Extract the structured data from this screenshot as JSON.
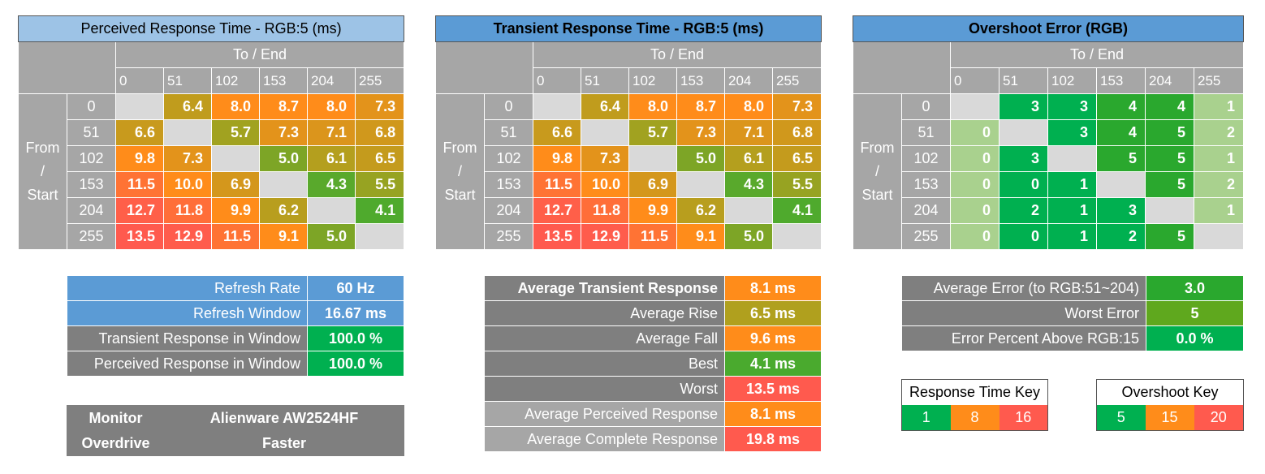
{
  "colors": {
    "green": "#00b050",
    "green_light": "#a9d18e",
    "olive": "#b0a01e",
    "orange": "#ff8c1a",
    "red": "#ff5a4e",
    "blue": "#5b9bd5"
  },
  "chart_data": [
    {
      "type": "table",
      "title": "Perceived Response Time - RGB:5 (ms)",
      "col_header": "To / End",
      "row_header": [
        "From",
        "/",
        "Start"
      ],
      "x": [
        "0",
        "51",
        "102",
        "153",
        "204",
        "255"
      ],
      "y": [
        "0",
        "51",
        "102",
        "153",
        "204",
        "255"
      ],
      "values": [
        [
          null,
          "6.4",
          "8.0",
          "8.7",
          "8.0",
          "7.3"
        ],
        [
          "6.6",
          null,
          "5.7",
          "7.3",
          "7.1",
          "6.8"
        ],
        [
          "9.8",
          "7.3",
          null,
          "5.0",
          "6.1",
          "6.5"
        ],
        [
          "11.5",
          "10.0",
          "6.9",
          null,
          "4.3",
          "5.5"
        ],
        [
          "12.7",
          "11.8",
          "9.9",
          "6.2",
          null,
          "4.1"
        ],
        [
          "13.5",
          "12.9",
          "11.5",
          "9.1",
          "5.0",
          null
        ]
      ]
    },
    {
      "type": "table",
      "title": "Transient Response Time - RGB:5 (ms)",
      "col_header": "To / End",
      "row_header": [
        "From",
        "/",
        "Start"
      ],
      "x": [
        "0",
        "51",
        "102",
        "153",
        "204",
        "255"
      ],
      "y": [
        "0",
        "51",
        "102",
        "153",
        "204",
        "255"
      ],
      "values": [
        [
          null,
          "6.4",
          "8.0",
          "8.7",
          "8.0",
          "7.3"
        ],
        [
          "6.6",
          null,
          "5.7",
          "7.3",
          "7.1",
          "6.8"
        ],
        [
          "9.8",
          "7.3",
          null,
          "5.0",
          "6.1",
          "6.5"
        ],
        [
          "11.5",
          "10.0",
          "6.9",
          null,
          "4.3",
          "5.5"
        ],
        [
          "12.7",
          "11.8",
          "9.9",
          "6.2",
          null,
          "4.1"
        ],
        [
          "13.5",
          "12.9",
          "11.5",
          "9.1",
          "5.0",
          null
        ]
      ]
    },
    {
      "type": "table",
      "title": "Overshoot Error (RGB)",
      "col_header": "To / End",
      "row_header": [
        "From",
        "/",
        "Start"
      ],
      "x": [
        "0",
        "51",
        "102",
        "153",
        "204",
        "255"
      ],
      "y": [
        "0",
        "51",
        "102",
        "153",
        "204",
        "255"
      ],
      "values": [
        [
          null,
          "3",
          "3",
          "4",
          "4",
          "1"
        ],
        [
          "0",
          null,
          "3",
          "4",
          "5",
          "2"
        ],
        [
          "0",
          "3",
          null,
          "5",
          "5",
          "1"
        ],
        [
          "0",
          "0",
          "1",
          null,
          "5",
          "2"
        ],
        [
          "0",
          "2",
          "1",
          "3",
          null,
          "1"
        ],
        [
          "0",
          "0",
          "1",
          "2",
          "5",
          null
        ]
      ]
    }
  ],
  "refresh": [
    {
      "label": "Refresh Rate",
      "value": "60 Hz"
    },
    {
      "label": "Refresh Window",
      "value": "16.67 ms"
    },
    {
      "label": "Transient Response in Window",
      "value": "100.0 %"
    },
    {
      "label": "Perceived Response in Window",
      "value": "100.0 %"
    }
  ],
  "monitor": [
    {
      "label": "Monitor",
      "value": "Alienware AW2524HF"
    },
    {
      "label": "Overdrive",
      "value": "Faster"
    }
  ],
  "averages": [
    {
      "label": "Average Transient Response",
      "value": "8.1 ms"
    },
    {
      "label": "Average Rise",
      "value": "6.5 ms"
    },
    {
      "label": "Average Fall",
      "value": "9.6 ms"
    },
    {
      "label": "Best",
      "value": "4.1 ms"
    },
    {
      "label": "Worst",
      "value": "13.5 ms"
    },
    {
      "label": "Average Perceived Response",
      "value": "8.1 ms"
    },
    {
      "label": "Average Complete Response",
      "value": "19.8 ms"
    }
  ],
  "errors": [
    {
      "label": "Average Error (to RGB:51~204)",
      "value": "3.0"
    },
    {
      "label": "Worst Error",
      "value": "5"
    },
    {
      "label": "Error Percent Above RGB:15",
      "value": "0.0 %"
    }
  ],
  "response_key": {
    "title": "Response Time Key",
    "values": [
      "1",
      "8",
      "16"
    ]
  },
  "overshoot_key": {
    "title": "Overshoot Key",
    "values": [
      "5",
      "15",
      "20"
    ]
  }
}
